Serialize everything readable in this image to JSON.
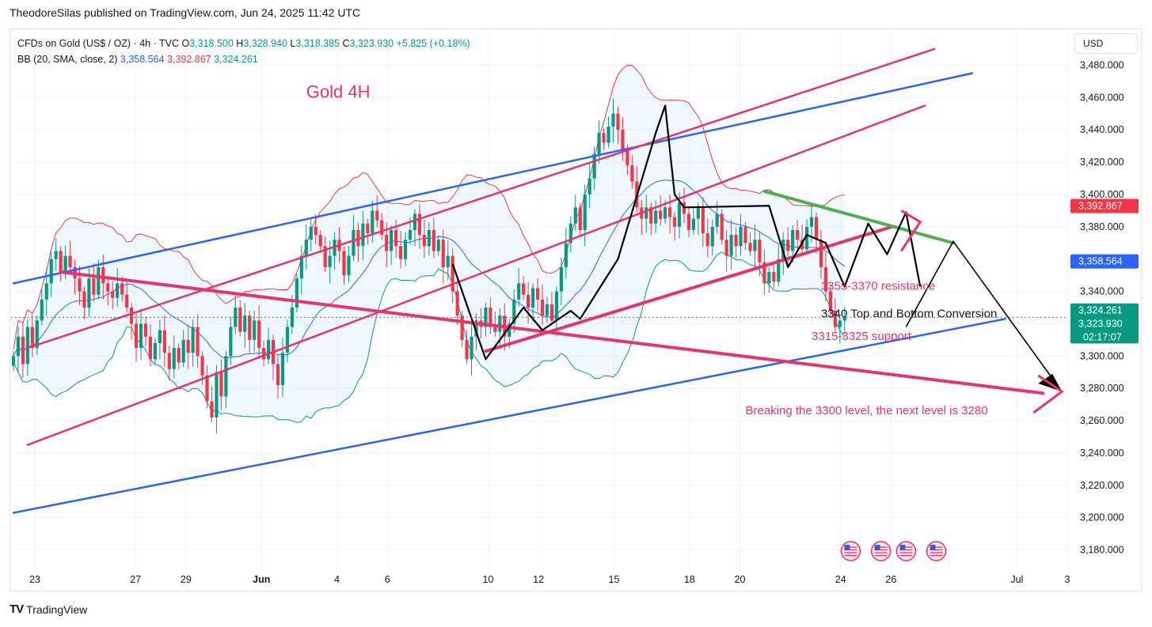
{
  "header": {
    "publisher_line": "TheodoreSilas published on TradingView.com, Jun 24, 2025 11:42 UTC"
  },
  "legend": {
    "symbol": "CFDs on Gold (US$ / OZ) · 4h · TVC",
    "open_label": "O",
    "open": "3,318.500",
    "high_label": "H",
    "high": "3,328.940",
    "low_label": "L",
    "low": "3,318.385",
    "close_label": "C",
    "close": "3,323.930",
    "change": "+5.825 (+0.18%)",
    "bb_label": "BB (20, SMA, close, 2)",
    "bb_basis": "3,358.564",
    "bb_upper": "3,392.867",
    "bb_lower": "3,324.261"
  },
  "currency": "USD",
  "footer": {
    "brand": "TradingView",
    "brand_logo": "TV"
  },
  "colors": {
    "up": "#089981",
    "down": "#f23645",
    "bb_upper": "#f23645",
    "bb_basis": "#2962ff",
    "bb_lower": "#089981",
    "annotation": "#e8336b",
    "channel_blue": "#2962ff"
  },
  "chart_data": {
    "type": "candlestick",
    "title": "Gold 4H",
    "ylim": [
      3170,
      3490
    ],
    "y_ticks": [
      3180,
      3200,
      3220,
      3240,
      3260,
      3280,
      3300,
      3320,
      3340,
      3380,
      3400,
      3420,
      3440,
      3460,
      3480
    ],
    "y_tick_labels": [
      "3,180.000",
      "3,200.000",
      "3,220.000",
      "3,240.000",
      "3,260.000",
      "3,280.000",
      "3,300.000",
      "3,320.000",
      "3,340.000",
      "3,380.000",
      "3,400.000",
      "3,420.000",
      "3,440.000",
      "3,460.000",
      "3,480.000"
    ],
    "x_ticks": [
      {
        "label": "23",
        "day": 23
      },
      {
        "label": "27",
        "day": 27
      },
      {
        "label": "29",
        "day": 29
      },
      {
        "label": "Jun",
        "day": 32
      },
      {
        "label": "4",
        "day": 35
      },
      {
        "label": "6",
        "day": 37
      },
      {
        "label": "10",
        "day": 41
      },
      {
        "label": "12",
        "day": 43
      },
      {
        "label": "15",
        "day": 46
      },
      {
        "label": "18",
        "day": 49
      },
      {
        "label": "20",
        "day": 51
      },
      {
        "label": "24",
        "day": 55
      },
      {
        "label": "26",
        "day": 57
      },
      {
        "label": "Jul",
        "day": 62
      },
      {
        "label": "3",
        "day": 64
      }
    ],
    "x_label_bold": [
      "Jun"
    ],
    "closes": [
      3300,
      3312,
      3295,
      3318,
      3305,
      3322,
      3335,
      3345,
      3360,
      3365,
      3352,
      3362,
      3355,
      3348,
      3340,
      3330,
      3348,
      3338,
      3355,
      3345,
      3340,
      3336,
      3345,
      3338,
      3330,
      3320,
      3305,
      3320,
      3312,
      3298,
      3308,
      3316,
      3302,
      3292,
      3305,
      3296,
      3310,
      3302,
      3318,
      3300,
      3288,
      3272,
      3262,
      3290,
      3275,
      3300,
      3318,
      3330,
      3315,
      3325,
      3310,
      3322,
      3305,
      3298,
      3310,
      3295,
      3282,
      3302,
      3318,
      3330,
      3348,
      3362,
      3372,
      3380,
      3375,
      3368,
      3355,
      3362,
      3372,
      3365,
      3350,
      3362,
      3378,
      3368,
      3382,
      3376,
      3390,
      3384,
      3375,
      3365,
      3378,
      3368,
      3360,
      3372,
      3378,
      3388,
      3375,
      3368,
      3378,
      3365,
      3372,
      3355,
      3362,
      3340,
      3325,
      3310,
      3298,
      3312,
      3322,
      3318,
      3330,
      3318,
      3315,
      3325,
      3312,
      3320,
      3335,
      3345,
      3338,
      3330,
      3342,
      3335,
      3325,
      3332,
      3322,
      3340,
      3355,
      3370,
      3382,
      3392,
      3378,
      3400,
      3410,
      3425,
      3438,
      3432,
      3442,
      3450,
      3440,
      3428,
      3418,
      3408,
      3392,
      3385,
      3392,
      3382,
      3390,
      3385,
      3392,
      3386,
      3380,
      3395,
      3388,
      3378,
      3385,
      3392,
      3376,
      3368,
      3380,
      3388,
      3372,
      3362,
      3375,
      3368,
      3380,
      3370,
      3365,
      3372,
      3358,
      3345,
      3352,
      3346,
      3360,
      3372,
      3365,
      3378,
      3372,
      3366,
      3380,
      3386,
      3372,
      3355,
      3340,
      3328,
      3318,
      3322,
      3324
    ],
    "opens_from_prev_close": true,
    "current_price": 3323.93,
    "countdown": "02:17:07",
    "price_labels": [
      {
        "value": 3392.867,
        "text": "3,392.867",
        "color": "#f23645"
      },
      {
        "value": 3358.564,
        "text": "3,358.564",
        "color": "#2962ff"
      },
      {
        "value": 3324.261,
        "text": "3,324.261",
        "color": "#089981"
      },
      {
        "value": 3323.93,
        "text": "3,323.930",
        "color": "#089981"
      }
    ],
    "annotations": [
      {
        "text": "Gold 4H",
        "color": "#e8336b",
        "price": 3460,
        "bar": 62
      },
      {
        "text": "3355-3370 resistance",
        "color": "#e8336b",
        "price": 3341,
        "bar": 171
      },
      {
        "text": "3340 Top and Bottom Conversion",
        "color": "#131722",
        "price": 3324,
        "bar": 171
      },
      {
        "text": "3315-3325 support",
        "color": "#e8336b",
        "price": 3310,
        "bar": 169
      },
      {
        "text": "Breaking the 3300 level, the next level is 3280",
        "color": "#e8336b",
        "price": 3264,
        "bar": 155
      }
    ],
    "event_icons": 4
  }
}
